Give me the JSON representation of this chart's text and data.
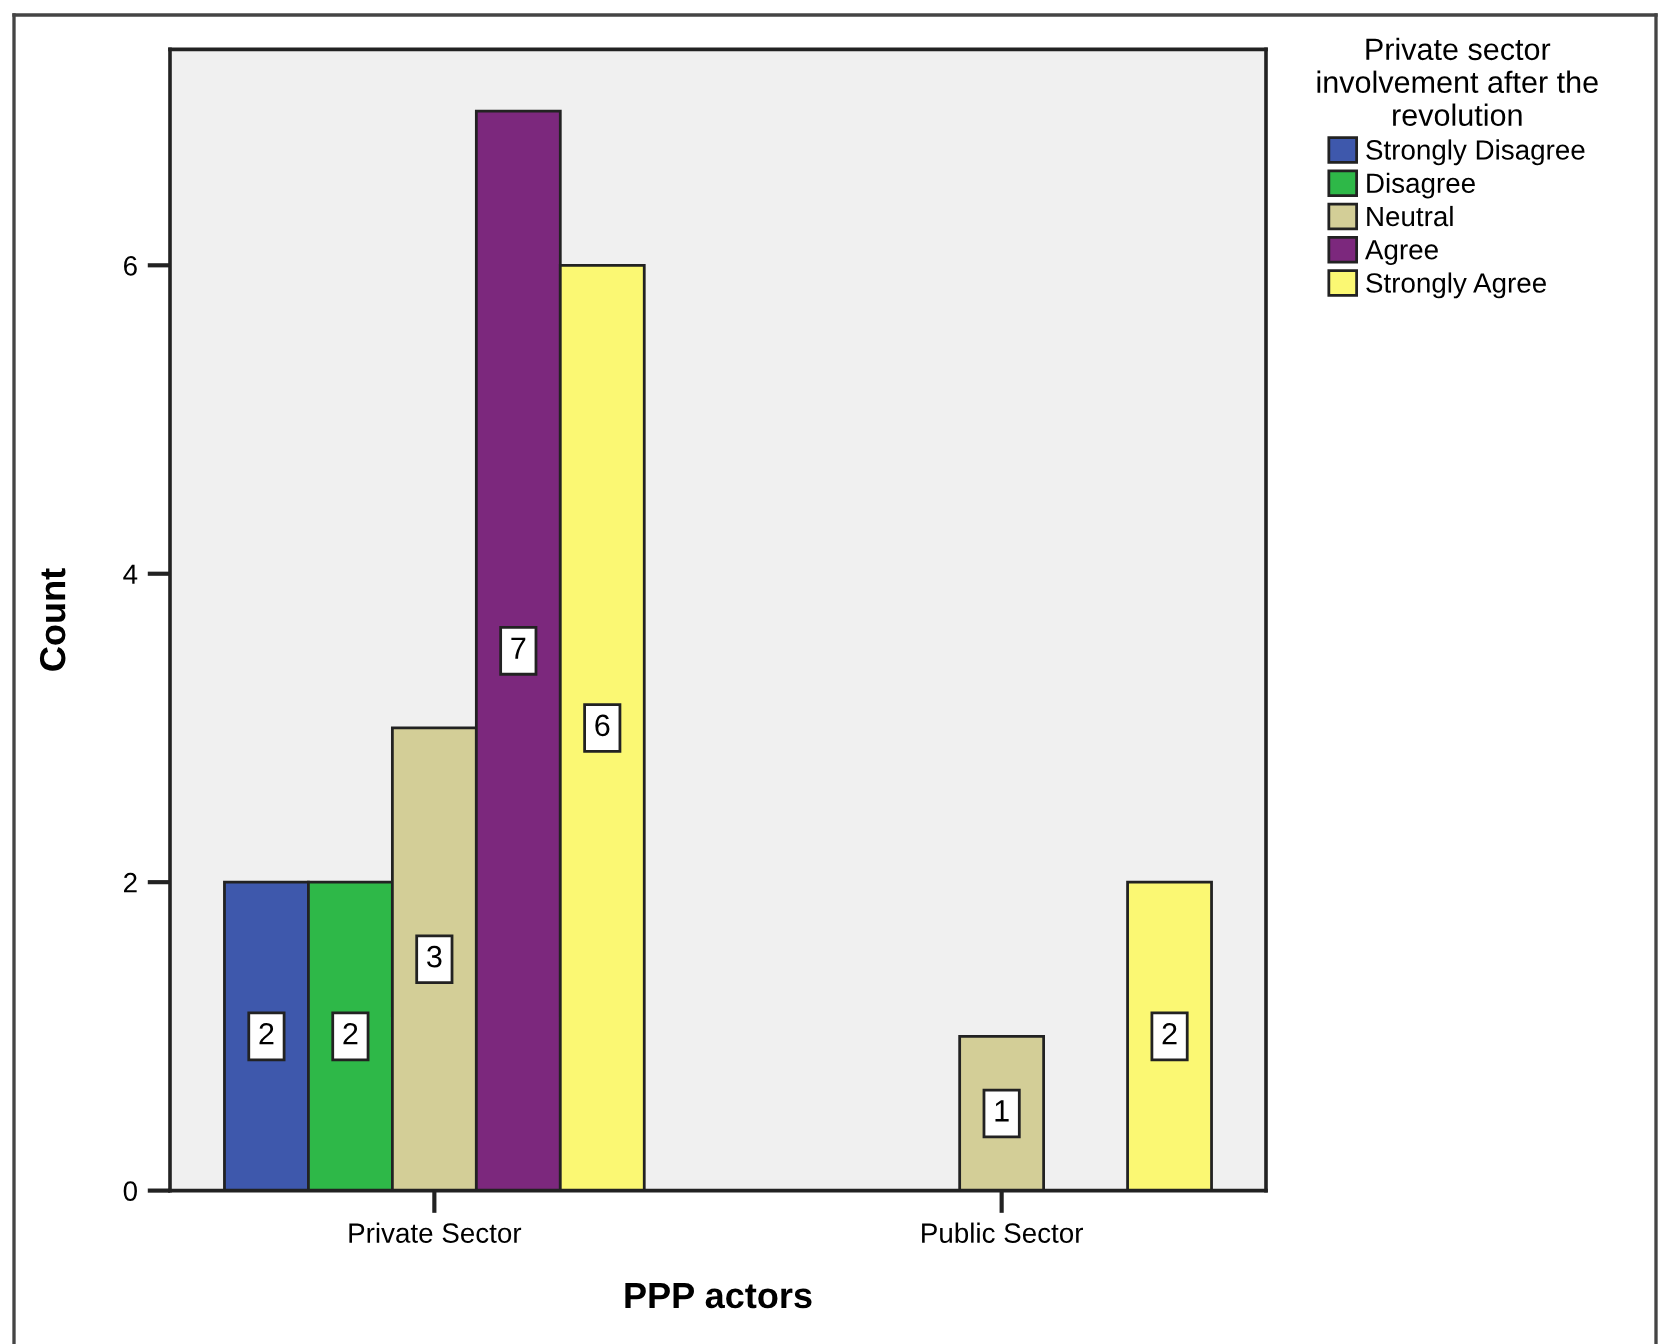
{
  "chart_data": {
    "type": "bar",
    "xlabel": "PPP actors",
    "ylabel": "Count",
    "legend_title": "Private sector\ninvolvement after the\nrevolution",
    "categories": [
      "Private Sector",
      "Public Sector"
    ],
    "series": [
      {
        "name": "Strongly Disagree",
        "color": "#3e58ac",
        "values": [
          2,
          null
        ]
      },
      {
        "name": "Disagree",
        "color": "#2eb848",
        "values": [
          2,
          null
        ]
      },
      {
        "name": "Neutral",
        "color": "#d3ce97",
        "values": [
          3,
          1
        ]
      },
      {
        "name": "Agree",
        "color": "#7c287d",
        "values": [
          7,
          null
        ]
      },
      {
        "name": "Strongly Agree",
        "color": "#fbf873",
        "values": [
          6,
          2
        ]
      }
    ],
    "ylim": [
      0,
      7.4
    ],
    "yticks": [
      0,
      2,
      4,
      6
    ],
    "data_labels": true,
    "grid": false,
    "legend": "top right"
  }
}
